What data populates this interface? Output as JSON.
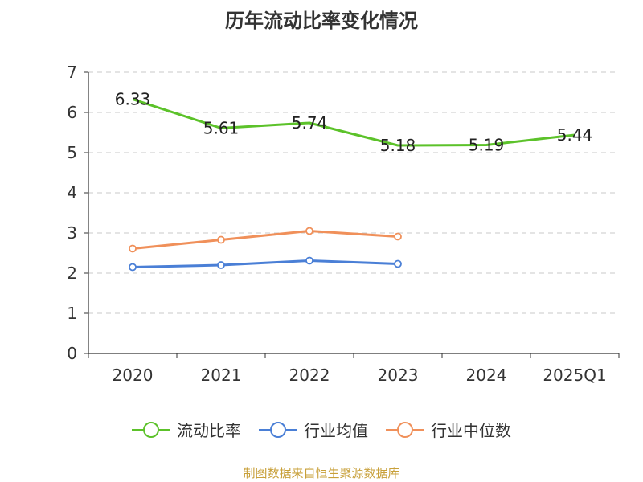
{
  "title": "历年流动比率变化情况",
  "source": "制图数据来自恒生聚源数据库",
  "colors": {
    "axis": "#333333",
    "grid": "#c8c8c8"
  },
  "chart_data": {
    "type": "line",
    "categories": [
      "2020",
      "2021",
      "2022",
      "2023",
      "2024",
      "2025Q1"
    ],
    "ylim": [
      0,
      7
    ],
    "yticks": [
      0,
      1,
      2,
      3,
      4,
      5,
      6,
      7
    ],
    "grid": "horizontal dashed",
    "legend_position": "bottom",
    "series": [
      {
        "name": "流动比率",
        "color": "#5cc22a",
        "values": [
          6.33,
          5.61,
          5.74,
          5.18,
          5.19,
          5.44
        ],
        "labels": [
          "6.33",
          "5.61",
          "5.74",
          "5.18",
          "5.19",
          "5.44"
        ],
        "markers": false
      },
      {
        "name": "行业均值",
        "color": "#4a7fd6",
        "values": [
          2.15,
          2.2,
          2.31,
          2.23,
          null,
          null
        ],
        "markers": true
      },
      {
        "name": "行业中位数",
        "color": "#f0905a",
        "values": [
          2.61,
          2.83,
          3.05,
          2.91,
          null,
          null
        ],
        "markers": true
      }
    ]
  }
}
